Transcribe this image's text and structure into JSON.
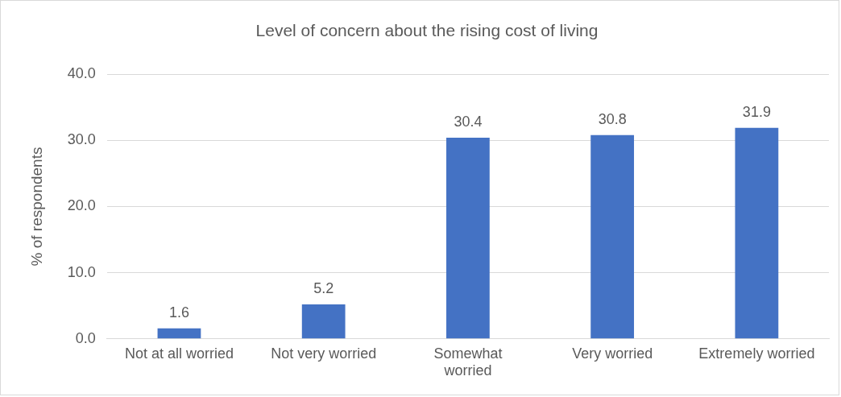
{
  "chart_data": {
    "type": "bar",
    "title": "Level of concern about the rising cost of living",
    "ylabel": "% of respondents",
    "categories": [
      "Not at all worried",
      "Not very worried",
      "Somewhat worried",
      "Very worried",
      "Extremely worried"
    ],
    "values": [
      1.6,
      5.2,
      30.4,
      30.8,
      31.9
    ],
    "color": "#4472c4",
    "ylim": [
      0,
      40
    ],
    "yticks": [
      {
        "value": 0,
        "label": "0.0"
      },
      {
        "value": 10,
        "label": "10.0"
      },
      {
        "value": 20,
        "label": "20.0"
      },
      {
        "value": 30,
        "label": "30.0"
      },
      {
        "value": 40,
        "label": "40.0"
      }
    ],
    "grid": "y",
    "legend": false,
    "data_labels": true
  }
}
